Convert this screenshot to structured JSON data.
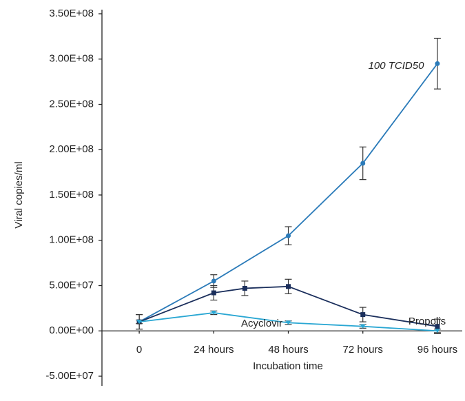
{
  "chart_data": {
    "type": "line",
    "y_label": "Viral copies/ml",
    "x_label": "Incubation time",
    "xlim": [
      -12,
      104
    ],
    "xticks": [
      0,
      {
        "value": 24,
        "label": "24 hours"
      },
      {
        "value": 48,
        "label": "48 hours"
      },
      {
        "value": 72,
        "label": "72 hours"
      },
      {
        "value": 96,
        "label": "96 hours"
      }
    ],
    "ylim": [
      -50000000,
      350000000
    ],
    "yticks": [
      {
        "value": -50000000,
        "label": "-5.00E+07"
      },
      {
        "value": 0,
        "label": "0.00E+00"
      },
      {
        "value": 50000000,
        "label": "5.00E+07"
      },
      {
        "value": 100000000,
        "label": "1.00E+08"
      },
      {
        "value": 150000000,
        "label": "1.50E+08"
      },
      {
        "value": 200000000,
        "label": "2.00E+08"
      },
      {
        "value": 250000000,
        "label": "2.50E+08"
      },
      {
        "value": 300000000,
        "label": "3.00E+08"
      },
      {
        "value": 350000000,
        "label": "3.50E+08"
      }
    ],
    "series": [
      {
        "name": "100 TCID50",
        "color": "#2b7bb9",
        "marker": "circle",
        "x": [
          0,
          24,
          48,
          72,
          96
        ],
        "values": [
          10000000,
          55000000,
          105000000,
          185000000,
          295000000
        ],
        "errors": [
          8000000,
          7000000,
          10000000,
          18000000,
          28000000
        ]
      },
      {
        "name": "Propolis",
        "color": "#1b2f5c",
        "marker": "square",
        "x": [
          0,
          24,
          34,
          48,
          72,
          96
        ],
        "values": [
          10000000,
          42000000,
          47000000,
          49000000,
          18000000,
          5000000
        ],
        "errors": [
          8000000,
          8000000,
          8000000,
          8000000,
          8000000,
          8000000
        ]
      },
      {
        "name": "Acyclovir",
        "color": "#2aa7d3",
        "marker": "triangle",
        "x": [
          0,
          24,
          48,
          72,
          96
        ],
        "values": [
          10000000,
          20000000,
          9000000,
          5000000,
          0
        ],
        "errors": [
          2000000,
          2000000,
          2000000,
          2000000,
          2000000
        ]
      }
    ]
  }
}
